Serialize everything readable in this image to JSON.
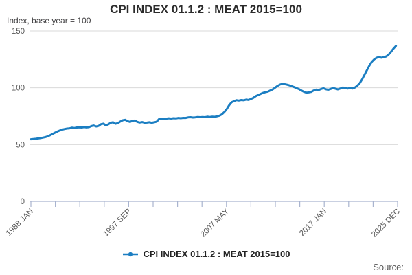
{
  "header": {
    "title": "CPI INDEX 01.1.2 : MEAT 2015=100",
    "subtitle": "Index, base year = 100"
  },
  "legend": {
    "label": "CPI INDEX 01.1.2 : MEAT 2015=100"
  },
  "footer": {
    "source_label": "Source:"
  },
  "colors": {
    "series": "#1b7ec2",
    "grid": "#d9d9d9",
    "axis": "#a9b4cf",
    "tick_text": "#595959",
    "dark_text": "#2b2b2b"
  },
  "chart_data": {
    "type": "line",
    "title": "CPI INDEX 01.1.2 : MEAT 2015=100",
    "subtitle": "Index, base year = 100",
    "ylabel": "Index, base year = 100",
    "xlabel": "",
    "ylim": [
      0,
      150
    ],
    "yticks": [
      0,
      50,
      100,
      150
    ],
    "ytick_labels": [
      "0",
      "50",
      "100",
      "150"
    ],
    "xtick_labels": [
      "1988 JAN",
      "1997 SEP",
      "2007 MAY",
      "2017 JAN",
      "2025 DEC"
    ],
    "x_minor_tick_count": 16,
    "xtick_label_slots": [
      0,
      4,
      8,
      12,
      15
    ],
    "grid": "horizontal",
    "legend_position": "bottom",
    "series": [
      {
        "name": "CPI INDEX 01.1.2 : MEAT 2015=100",
        "x_start": 1988.0,
        "x_step": 0.25,
        "x_axis_start": 1988.0,
        "x_axis_end": 2025.917,
        "y": [
          54.7,
          54.9,
          55.1,
          55.4,
          55.7,
          56.1,
          56.6,
          57.3,
          58.3,
          59.4,
          60.5,
          61.5,
          62.4,
          63.2,
          63.7,
          64.1,
          64.3,
          64.9,
          64.6,
          65.0,
          65.2,
          65.0,
          65.4,
          65.1,
          65.3,
          66.2,
          66.8,
          65.9,
          66.4,
          67.9,
          68.4,
          66.9,
          67.8,
          69.2,
          69.6,
          68.3,
          68.9,
          70.3,
          71.4,
          71.8,
          70.6,
          69.9,
          70.9,
          71.2,
          70.0,
          69.4,
          69.8,
          69.2,
          69.3,
          69.6,
          69.2,
          69.6,
          70.1,
          72.4,
          72.8,
          72.5,
          72.8,
          73.1,
          72.9,
          73.2,
          73.0,
          73.4,
          73.2,
          73.5,
          73.4,
          73.9,
          74.1,
          73.8,
          74.0,
          74.3,
          74.1,
          74.3,
          74.1,
          74.5,
          74.3,
          74.6,
          74.4,
          74.9,
          75.4,
          76.6,
          78.6,
          81.2,
          84.6,
          87.2,
          88.2,
          89.1,
          88.7,
          89.2,
          89.0,
          89.6,
          89.3,
          90.1,
          91.1,
          92.6,
          93.6,
          94.6,
          95.5,
          96.1,
          96.6,
          97.6,
          98.6,
          100.1,
          101.6,
          102.8,
          103.5,
          103.2,
          102.7,
          102.1,
          101.3,
          100.5,
          99.7,
          98.7,
          97.5,
          96.4,
          95.7,
          96.0,
          96.4,
          97.6,
          98.4,
          98.0,
          98.9,
          99.6,
          98.7,
          98.3,
          99.0,
          99.8,
          99.2,
          98.6,
          99.4,
          100.3,
          99.8,
          99.3,
          99.8,
          99.4,
          100.2,
          101.8,
          104.0,
          107.5,
          111.5,
          115.5,
          119.5,
          122.8,
          125.0,
          126.4,
          127.0,
          126.5,
          127.0,
          127.6,
          129.3,
          131.8,
          134.5,
          136.9
        ]
      }
    ]
  }
}
